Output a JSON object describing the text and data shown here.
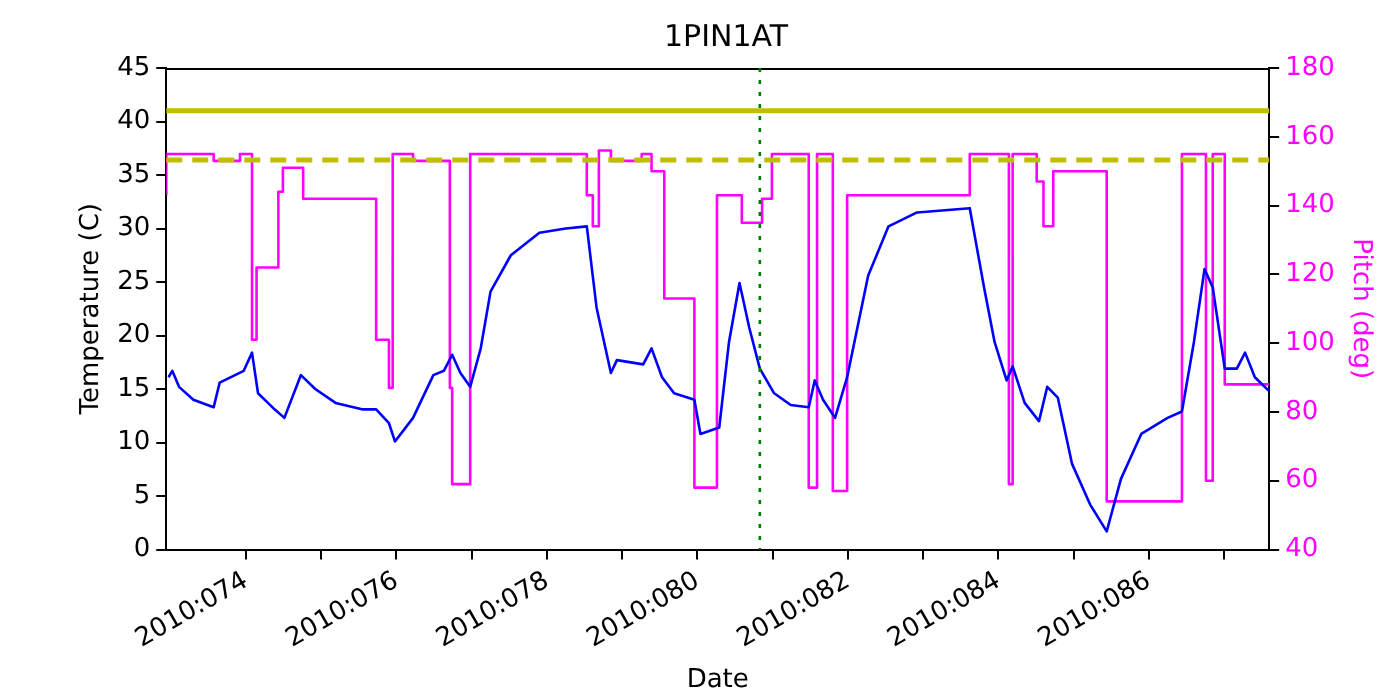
{
  "chart_data": {
    "type": "line",
    "title": "1PIN1AT",
    "xlabel": "Date",
    "ylabel": "Temperature (C)",
    "y2label": "Pitch (deg)",
    "xlim": [
      "2010-03-13T22:34",
      "2010-03-28T14:24"
    ],
    "xticks": [
      {
        "value": "2010-03-15",
        "label": "2010:074"
      },
      {
        "value": "2010-03-16",
        "label": null
      },
      {
        "value": "2010-03-17",
        "label": "2010:076"
      },
      {
        "value": "2010-03-18",
        "label": null
      },
      {
        "value": "2010-03-19",
        "label": "2010:078"
      },
      {
        "value": "2010-03-20",
        "label": null
      },
      {
        "value": "2010-03-21",
        "label": "2010:080"
      },
      {
        "value": "2010-03-22",
        "label": null
      },
      {
        "value": "2010-03-23",
        "label": "2010:082"
      },
      {
        "value": "2010-03-24",
        "label": null
      },
      {
        "value": "2010-03-25",
        "label": "2010:084"
      },
      {
        "value": "2010-03-26",
        "label": null
      },
      {
        "value": "2010-03-27",
        "label": "2010:086"
      },
      {
        "value": "2010-03-28",
        "label": null
      }
    ],
    "ylim": [
      0,
      45
    ],
    "yticks": [
      0,
      5,
      10,
      15,
      20,
      25,
      30,
      35,
      40,
      45
    ],
    "y2lim": [
      40,
      180
    ],
    "y2ticks": [
      40,
      60,
      80,
      100,
      120,
      140,
      160,
      180
    ],
    "grid": false,
    "legend": false,
    "marker": "none",
    "series": [
      {
        "axis": "y",
        "color": "#0000ff",
        "x": [
          "2010-03-13T23:17",
          "2010-03-14T00:29",
          "2010-03-14T02:38",
          "2010-03-14T07:12",
          "2010-03-14T13:41",
          "2010-03-14T15:36",
          "2010-03-14T23:17",
          "2010-03-15T01:55",
          "2010-03-15T03:50",
          "2010-03-15T09:07",
          "2010-03-15T12:14",
          "2010-03-15T17:31",
          "2010-03-15T22:05",
          "2010-03-16T04:34",
          "2010-03-16T12:58",
          "2010-03-16T17:31",
          "2010-03-16T21:36",
          "2010-03-16T23:31",
          "2010-03-17T05:17",
          "2010-03-17T11:46",
          "2010-03-17T15:07",
          "2010-03-17T17:46",
          "2010-03-17T20:24",
          "2010-03-17T23:31",
          "2010-03-18T02:53",
          "2010-03-18T06:00",
          "2010-03-18T12:29",
          "2010-03-18T21:36",
          "2010-03-19T06:00",
          "2010-03-19T12:43",
          "2010-03-19T15:50",
          "2010-03-19T20:24",
          "2010-03-19T22:19",
          "2010-03-20T06:43",
          "2010-03-20T09:22",
          "2010-03-20T12:43",
          "2010-03-20T16:34",
          "2010-03-20T23:02",
          "2010-03-21T00:58",
          "2010-03-21T06:58",
          "2010-03-21T10:05",
          "2010-03-21T13:26",
          "2010-03-21T16:34",
          "2010-03-21T19:55",
          "2010-03-22T00:29",
          "2010-03-22T05:46",
          "2010-03-22T11:31",
          "2010-03-22T13:26",
          "2010-03-22T16:05",
          "2010-03-22T19:55",
          "2010-03-22T23:46",
          "2010-03-23T06:29",
          "2010-03-23T12:58",
          "2010-03-23T22:05",
          "2010-03-24T14:53",
          "2010-03-24T19:26",
          "2010-03-24T22:48",
          "2010-03-25T02:38",
          "2010-03-25T04:34",
          "2010-03-25T08:24",
          "2010-03-25T12:58",
          "2010-03-25T15:36",
          "2010-03-25T18:58",
          "2010-03-25T23:31",
          "2010-03-26T05:17",
          "2010-03-26T10:34",
          "2010-03-26T15:07",
          "2010-03-26T21:36",
          "2010-03-27T06:00",
          "2010-03-27T10:34",
          "2010-03-27T14:24",
          "2010-03-27T17:46",
          "2010-03-27T20:24",
          "2010-03-28T00:14",
          "2010-03-28T04:05",
          "2010-03-28T06:43",
          "2010-03-28T09:50",
          "2010-03-28T14:24"
        ],
        "values": [
          16.1,
          16.7,
          15.2,
          14.0,
          13.3,
          15.6,
          16.7,
          18.4,
          14.6,
          13.1,
          12.3,
          16.3,
          15.0,
          13.7,
          13.1,
          13.1,
          11.8,
          10.1,
          12.3,
          16.3,
          16.7,
          18.2,
          16.5,
          15.2,
          18.8,
          24.1,
          27.5,
          29.6,
          30.0,
          30.2,
          22.6,
          16.5,
          17.7,
          17.3,
          18.8,
          16.1,
          14.6,
          14.0,
          10.8,
          11.4,
          19.4,
          24.9,
          20.7,
          16.9,
          14.6,
          13.5,
          13.3,
          15.8,
          14.0,
          12.3,
          16.1,
          25.6,
          30.2,
          31.5,
          31.9,
          24.5,
          19.4,
          15.8,
          17.1,
          13.7,
          12.0,
          15.2,
          14.2,
          8.0,
          4.2,
          1.7,
          6.6,
          10.8,
          12.3,
          12.9,
          19.4,
          26.2,
          24.5,
          16.9,
          16.9,
          18.4,
          16.1,
          14.8
        ]
      },
      {
        "type": "step",
        "axis": "y2",
        "color": "#ff00ff",
        "x": [
          "2010-03-13T22:34",
          "2010-03-14T13:41",
          "2010-03-14T22:05",
          "2010-03-15T01:55",
          "2010-03-15T03:22",
          "2010-03-15T10:19",
          "2010-03-15T11:46",
          "2010-03-15T18:14",
          "2010-03-16T17:31",
          "2010-03-16T21:36",
          "2010-03-16T22:48",
          "2010-03-17T05:17",
          "2010-03-17T17:02",
          "2010-03-17T17:46",
          "2010-03-17T23:31",
          "2010-03-19T12:43",
          "2010-03-19T14:38",
          "2010-03-19T16:34",
          "2010-03-19T20:24",
          "2010-03-20T06:14",
          "2010-03-20T09:22",
          "2010-03-20T13:26",
          "2010-03-20T23:02",
          "2010-03-21T06:14",
          "2010-03-21T14:10",
          "2010-03-21T20:38",
          "2010-03-21T23:46",
          "2010-03-22T11:31",
          "2010-03-22T14:10",
          "2010-03-22T19:12",
          "2010-03-22T23:46",
          "2010-03-24T14:53",
          "2010-03-25T03:22",
          "2010-03-25T04:34",
          "2010-03-25T12:14",
          "2010-03-25T14:24",
          "2010-03-25T17:31",
          "2010-03-26T10:34",
          "2010-03-27T10:34",
          "2010-03-27T18:14",
          "2010-03-27T20:24",
          "2010-03-28T00:14",
          "2010-03-28T06:00",
          "2010-03-28T14:24"
        ],
        "values": [
          143,
          155,
          153,
          155,
          101,
          122,
          144,
          151,
          142,
          101,
          87,
          155,
          153,
          87,
          59,
          155,
          143,
          134,
          156,
          153,
          155,
          150,
          113,
          58,
          143,
          135,
          142,
          155,
          58,
          155,
          57,
          143,
          155,
          59,
          155,
          147,
          134,
          150,
          54,
          155,
          60,
          155,
          88,
          88
        ]
      }
    ],
    "ref_lines": [
      {
        "axis": "y",
        "value": 41,
        "color": "#bfbf00",
        "line_style": "solid"
      },
      {
        "axis": "y",
        "value": 36.4,
        "color": "#bfbf00",
        "line_style": "dashed"
      },
      {
        "axis": "x",
        "value": "2010-03-21T19:55",
        "color": "#008000",
        "line_style": "dotted"
      }
    ]
  }
}
